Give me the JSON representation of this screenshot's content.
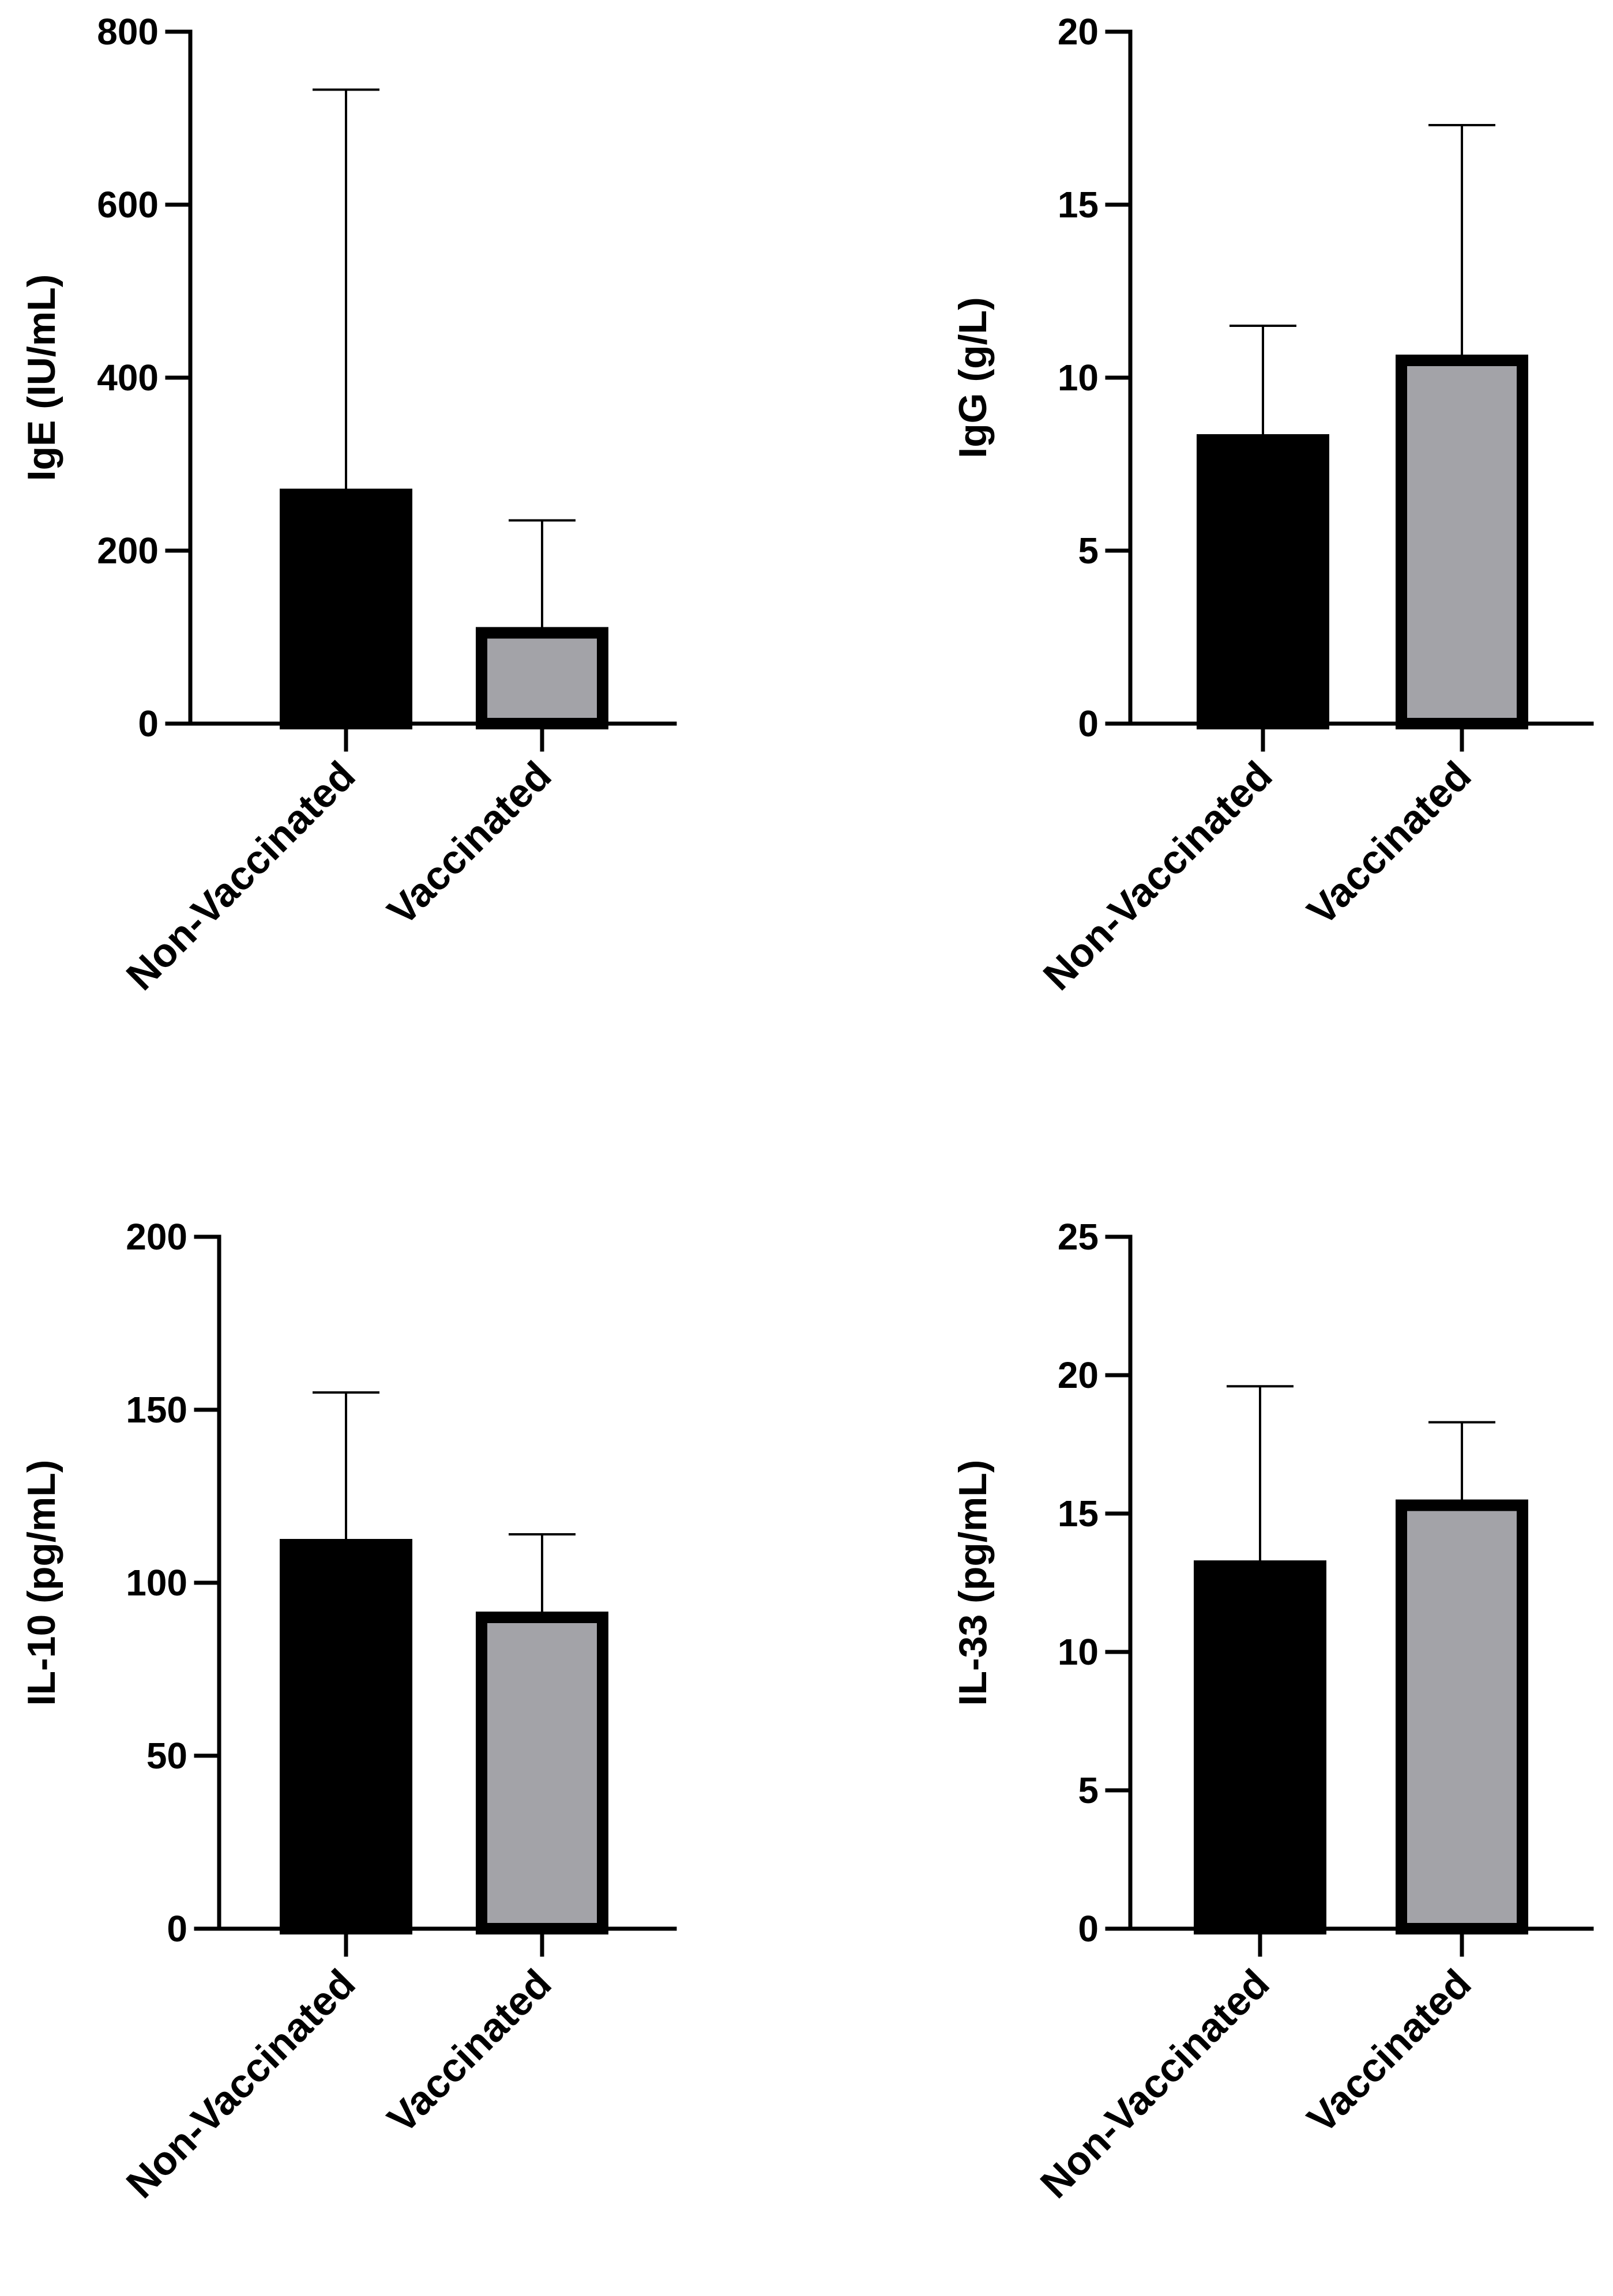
{
  "chart_data": [
    {
      "id": "ige",
      "type": "bar",
      "ylabel": "IgE (IU/mL)",
      "categories": [
        "Non-Vaccinated",
        "Vaccinated"
      ],
      "values": [
        265,
        105
      ],
      "error_upper": [
        733,
        235
      ],
      "ylim": [
        0,
        800
      ],
      "yticks": [
        0,
        200,
        400,
        600,
        800
      ],
      "colors": [
        "#000000",
        "#a3a3a8"
      ]
    },
    {
      "id": "igg",
      "type": "bar",
      "ylabel": "IgG (g/L)",
      "categories": [
        "Non-Vaccinated",
        "Vaccinated"
      ],
      "values": [
        8.2,
        10.5
      ],
      "error_upper": [
        11.5,
        17.3
      ],
      "ylim": [
        0,
        20
      ],
      "yticks": [
        0,
        5,
        10,
        15,
        20
      ],
      "colors": [
        "#000000",
        "#a3a3a8"
      ]
    },
    {
      "id": "il10",
      "type": "bar",
      "ylabel": "IL-10 (pg/mL)",
      "categories": [
        "Non-Vaccinated",
        "Vaccinated"
      ],
      "values": [
        111,
        90
      ],
      "error_upper": [
        155,
        114
      ],
      "ylim": [
        0,
        200
      ],
      "yticks": [
        0,
        50,
        100,
        150,
        200
      ],
      "colors": [
        "#000000",
        "#a3a3a8"
      ]
    },
    {
      "id": "il33",
      "type": "bar",
      "ylabel": "IL-33 (pg/mL)",
      "categories": [
        "Non-Vaccinated",
        "Vaccinated"
      ],
      "values": [
        13.1,
        15.3
      ],
      "error_upper": [
        19.6,
        18.3
      ],
      "ylim": [
        0,
        25
      ],
      "yticks": [
        0,
        5,
        10,
        15,
        20,
        25
      ],
      "colors": [
        "#000000",
        "#a3a3a8"
      ]
    }
  ]
}
